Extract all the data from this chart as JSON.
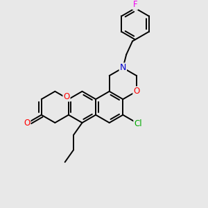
{
  "background_color": "#e8e8e8",
  "bond_color": "#000000",
  "atom_colors": {
    "O": "#ff0000",
    "N": "#0000cc",
    "Cl": "#00aa00",
    "F": "#ee00ee",
    "C": "#000000"
  },
  "figsize": [
    3.0,
    3.0
  ],
  "dpi": 100,
  "lw": 1.4,
  "bl": 23
}
